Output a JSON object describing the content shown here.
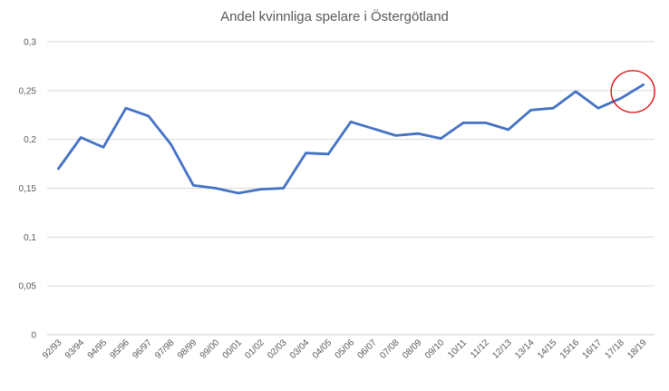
{
  "chart_data": {
    "type": "line",
    "title": "Andel kvinnliga spelare i Östergötland",
    "xlabel": "",
    "ylabel": "",
    "categories": [
      "92/93",
      "93/94",
      "94/95",
      "95/96",
      "96/97",
      "97/98",
      "98/99",
      "99/00",
      "00/01",
      "01/02",
      "02/03",
      "03/04",
      "04/05",
      "05/06",
      "06/07",
      "07/08",
      "08/09",
      "09/10",
      "10/11",
      "11/12",
      "12/13",
      "13/14",
      "14/15",
      "15/16",
      "16/17",
      "17/18",
      "18/19"
    ],
    "series": [
      {
        "values": [
          0.17,
          0.202,
          0.192,
          0.232,
          0.224,
          0.195,
          0.153,
          0.15,
          0.145,
          0.149,
          0.15,
          0.186,
          0.185,
          0.218,
          0.211,
          0.204,
          0.206,
          0.201,
          0.217,
          0.217,
          0.21,
          0.23,
          0.232,
          0.249,
          0.232,
          0.242,
          0.256
        ],
        "color": "#4472C4"
      }
    ],
    "ylim": [
      0,
      0.3
    ],
    "yticks": [
      "0",
      "0,05",
      "0,1",
      "0,15",
      "0,2",
      "0,25",
      "0,3"
    ],
    "grid": true,
    "legend": "none",
    "annotation": {
      "type": "circle",
      "color": "#E00000",
      "around_categories": [
        "17/18",
        "18/19"
      ]
    }
  }
}
